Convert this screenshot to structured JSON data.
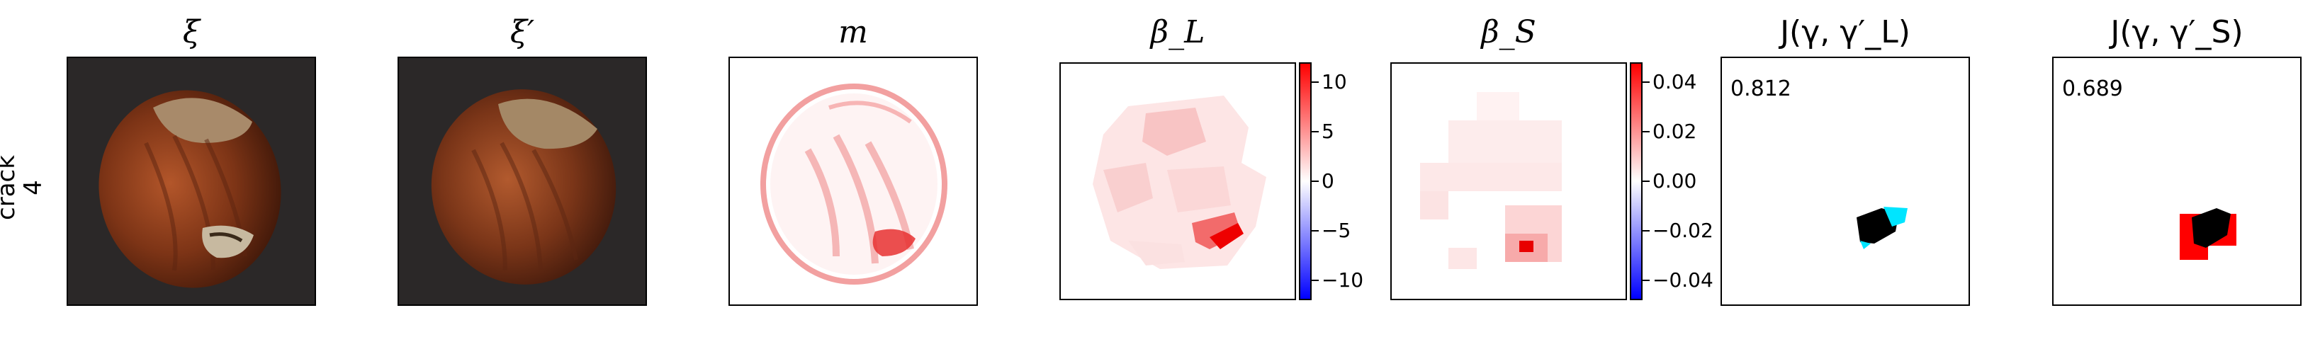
{
  "row_label": [
    "crack",
    "4"
  ],
  "panels": [
    {
      "title": "ξ"
    },
    {
      "title": "ξ′"
    },
    {
      "title": "m"
    },
    {
      "title": "β_L"
    },
    {
      "title": "β_S"
    },
    {
      "title": "J(γ, γ′_L)"
    },
    {
      "title": "J(γ, γ′_S)"
    }
  ],
  "colorbars": {
    "beta_L": {
      "range": [
        -12,
        12
      ],
      "ticks": [
        "10",
        "5",
        "0",
        "−5",
        "−10"
      ],
      "tick_values": [
        10,
        5,
        0,
        -5,
        -10
      ]
    },
    "beta_S": {
      "range": [
        -0.048,
        0.048
      ],
      "ticks": [
        "0.04",
        "0.02",
        "0.00",
        "−0.02",
        "−0.04"
      ],
      "tick_values": [
        0.04,
        0.02,
        0.0,
        -0.02,
        -0.04
      ]
    }
  },
  "scores": {
    "jl": "0.812",
    "js": "0.689"
  },
  "colors": {
    "positive": "#ff0000",
    "negative": "#0000ff",
    "overlap": "#000000",
    "jl_mark": "#00e5ff",
    "js_mark": "#ff0000",
    "photo_bg": "#2b2828"
  }
}
